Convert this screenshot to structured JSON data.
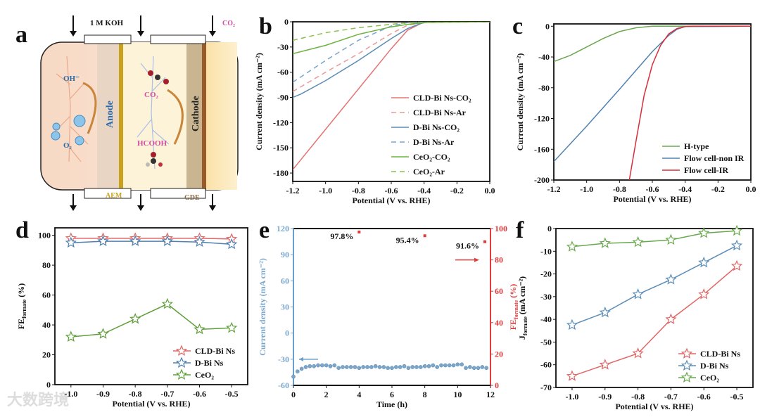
{
  "panel_labels": [
    "a",
    "b",
    "c",
    "d",
    "e",
    "f"
  ],
  "diagram": {
    "electrolyte": "1 M KOH",
    "co2_inlet": "CO₂",
    "oh": "OH⁻",
    "o2": "O₂",
    "anode": "Anode",
    "cathode": "Cathode",
    "co2": "CO₂",
    "hcooh": "HCOOH",
    "aem": "AEM",
    "gde": "GDE"
  },
  "watermark": "大数跨境",
  "chart_data": [
    {
      "id": "b",
      "type": "line",
      "xlabel": "Potential (V vs. RHE)",
      "ylabel": "Current density (mA cm⁻²)",
      "xlim": [
        -1.2,
        0
      ],
      "ylim": [
        -190,
        0
      ],
      "xticks": [
        "-1.2",
        "-1.0",
        "-0.8",
        "-0.6",
        "-0.4",
        "-0.2",
        "0.0"
      ],
      "yticks": [
        "0",
        "-30",
        "-60",
        "-90",
        "-120",
        "-150",
        "-180"
      ],
      "legend": "bottom-right",
      "series": [
        {
          "name": "CLD-Bi Ns-CO₂",
          "color": "#e57373",
          "dash": false,
          "points": [
            [
              -1.2,
              -176
            ],
            [
              -1.0,
              -128
            ],
            [
              -0.8,
              -80
            ],
            [
              -0.6,
              -32
            ],
            [
              -0.5,
              -10
            ],
            [
              -0.42,
              -2
            ],
            [
              -0.38,
              0
            ],
            [
              0,
              0
            ]
          ]
        },
        {
          "name": "CLD-Bi Ns-Ar",
          "color": "#e99a9a",
          "dash": true,
          "points": [
            [
              -1.2,
              -83
            ],
            [
              -1.0,
              -60
            ],
            [
              -0.8,
              -38
            ],
            [
              -0.6,
              -14
            ],
            [
              -0.5,
              -4
            ],
            [
              -0.4,
              -1
            ],
            [
              0,
              0
            ]
          ]
        },
        {
          "name": "D-Bi Ns-CO₂",
          "color": "#5b8db8",
          "dash": false,
          "points": [
            [
              -1.2,
              -90
            ],
            [
              -1.15,
              -86
            ],
            [
              -1.0,
              -70
            ],
            [
              -0.8,
              -46
            ],
            [
              -0.6,
              -20
            ],
            [
              -0.5,
              -8
            ],
            [
              -0.42,
              -2
            ],
            [
              -0.38,
              0
            ],
            [
              0,
              0
            ]
          ]
        },
        {
          "name": "D-Bi Ns-Ar",
          "color": "#7aa6cc",
          "dash": true,
          "points": [
            [
              -1.2,
              -72
            ],
            [
              -1.0,
              -46
            ],
            [
              -0.8,
              -22
            ],
            [
              -0.6,
              -5
            ],
            [
              -0.5,
              -1
            ],
            [
              0,
              0
            ]
          ]
        },
        {
          "name": "CeO₂-CO₂",
          "color": "#6cb33f",
          "dash": false,
          "points": [
            [
              -1.2,
              -38
            ],
            [
              -1.0,
              -28
            ],
            [
              -0.8,
              -15
            ],
            [
              -0.6,
              -6
            ],
            [
              -0.5,
              -3
            ],
            [
              -0.4,
              -1
            ],
            [
              0,
              0
            ]
          ]
        },
        {
          "name": "CeO₂-Ar",
          "color": "#8cbf4f",
          "dash": true,
          "points": [
            [
              -1.2,
              -22
            ],
            [
              -1.0,
              -13
            ],
            [
              -0.8,
              -7
            ],
            [
              -0.6,
              -3
            ],
            [
              -0.5,
              -1
            ],
            [
              0,
              0
            ]
          ]
        }
      ]
    },
    {
      "id": "c",
      "type": "line",
      "xlabel": "Potential (V vs. RHE)",
      "ylabel": "Current density (mA cm⁻²)",
      "xlim": [
        -1.2,
        0
      ],
      "ylim": [
        -200,
        3
      ],
      "xticks": [
        "-1.2",
        "-1.0",
        "-0.8",
        "-0.6",
        "-0.4",
        "-0.2",
        "0.0"
      ],
      "yticks": [
        "0",
        "-40",
        "-80",
        "-120",
        "-160",
        "-200"
      ],
      "legend": "bottom-right",
      "series": [
        {
          "name": "H-type",
          "color": "#6aa84f",
          "dash": false,
          "points": [
            [
              -1.2,
              -46
            ],
            [
              -1.1,
              -38
            ],
            [
              -1.0,
              -27
            ],
            [
              -0.9,
              -16
            ],
            [
              -0.8,
              -7
            ],
            [
              -0.7,
              -2
            ],
            [
              -0.6,
              0
            ],
            [
              0,
              0
            ]
          ]
        },
        {
          "name": "Flow cell-non IR",
          "color": "#4f81b0",
          "dash": false,
          "points": [
            [
              -1.2,
              -176
            ],
            [
              -1.0,
              -130
            ],
            [
              -0.8,
              -82
            ],
            [
              -0.6,
              -33
            ],
            [
              -0.5,
              -12
            ],
            [
              -0.45,
              -4
            ],
            [
              -0.4,
              -0.5
            ],
            [
              0,
              0
            ]
          ]
        },
        {
          "name": "Flow cell-IR",
          "color": "#d62f3a",
          "dash": false,
          "points": [
            [
              -0.74,
              -200
            ],
            [
              -0.7,
              -150
            ],
            [
              -0.65,
              -90
            ],
            [
              -0.6,
              -50
            ],
            [
              -0.55,
              -25
            ],
            [
              -0.5,
              -10
            ],
            [
              -0.45,
              -3
            ],
            [
              -0.4,
              -0.5
            ],
            [
              -0.35,
              0
            ],
            [
              0,
              0
            ]
          ]
        }
      ]
    },
    {
      "id": "d",
      "type": "line",
      "xlabel": "Potential (V vs. RHE)",
      "ylabel": {
        "main": "FE",
        "sub": "formate",
        "rest": " (%)"
      },
      "xlim": [
        -1.05,
        -0.45
      ],
      "ylim": [
        0,
        105
      ],
      "xticks": [
        "-1.0",
        "-0.9",
        "-0.8",
        "-0.7",
        "-0.6",
        "-0.5"
      ],
      "yticks": [
        "0",
        "20",
        "40",
        "60",
        "80",
        "100"
      ],
      "legend": "bottom-right",
      "x": [
        -1.0,
        -0.9,
        -0.8,
        -0.7,
        -0.6,
        -0.5
      ],
      "series": [
        {
          "name": "CLD-Bi Ns",
          "color": "#e06666",
          "values": [
            98,
            98,
            98,
            98,
            98,
            97.5
          ]
        },
        {
          "name": "D-Bi Ns",
          "color": "#4f81b0",
          "values": [
            95,
            96,
            96,
            96,
            95.5,
            94
          ]
        },
        {
          "name": "CeO₂",
          "color": "#5f9e3a",
          "values": [
            32,
            34,
            44,
            54,
            37,
            38
          ]
        }
      ]
    },
    {
      "id": "e",
      "type": "scatter",
      "xlabel": "Time (h)",
      "ylabel": "Current density (mA cm⁻²)",
      "ylabel2": {
        "main": "FE",
        "sub": "formate",
        "rest": " (%)"
      },
      "xlim": [
        0,
        12
      ],
      "ylim": [
        -60,
        120
      ],
      "y2lim": [
        0,
        100
      ],
      "xticks": [
        "0",
        "2",
        "4",
        "6",
        "8",
        "10",
        "12"
      ],
      "yticks": [
        "120",
        "90",
        "60",
        "30",
        "0",
        "-30",
        "-60"
      ],
      "y2ticks": [
        "100",
        "80",
        "60",
        "40",
        "20",
        "0"
      ],
      "current": {
        "color": "#7aa6cc",
        "x_start": 0,
        "x_step": 0.25,
        "values": [
          -50,
          -44,
          -41,
          -39,
          -38,
          -38,
          -37,
          -37,
          -37,
          -38,
          -37,
          -40,
          -39,
          -39,
          -39,
          -39,
          -40,
          -39,
          -39,
          -39,
          -38,
          -39,
          -39,
          -40,
          -40,
          -39,
          -39,
          -38,
          -40,
          -39,
          -39,
          -39,
          -38,
          -38,
          -37,
          -39,
          -37,
          -37,
          -37,
          -37,
          -36,
          -36,
          -40,
          -39,
          -40,
          -40,
          -39,
          -40
        ]
      },
      "fe": {
        "color": "#e03c3c",
        "x": [
          4,
          8,
          12
        ],
        "values": [
          97.8,
          95.4,
          91.6
        ],
        "labels": [
          "97.8%",
          "95.4%",
          "91.6%"
        ]
      }
    },
    {
      "id": "f",
      "type": "line",
      "xlabel": "Potential (V vs. RHE)",
      "ylabel": {
        "main": "J",
        "sub": "formate",
        "rest": " (mA cm⁻²)"
      },
      "xlim": [
        -1.049,
        -0.451
      ],
      "ylim": [
        -70,
        0
      ],
      "xticks": [
        "-1.0",
        "-0.9",
        "-0.8",
        "-0.7",
        "-0.6",
        "-0.5"
      ],
      "yticks": [
        "0",
        "-10",
        "-20",
        "-30",
        "-40",
        "-50",
        "-60",
        "-70"
      ],
      "legend": "bottom-right",
      "x": [
        -1.0,
        -0.9,
        -0.8,
        -0.7,
        -0.6,
        -0.5
      ],
      "series": [
        {
          "name": "CLD-Bi Ns",
          "color": "#e06666",
          "values": [
            -65,
            -60,
            -55,
            -40,
            -29,
            -16.5
          ]
        },
        {
          "name": "D-Bi Ns",
          "color": "#5b8db8",
          "values": [
            -42.5,
            -37,
            -29,
            -22.5,
            -15,
            -7.5
          ]
        },
        {
          "name": "CeO₂",
          "color": "#6aa84f",
          "values": [
            -8,
            -6.5,
            -6,
            -5,
            -2,
            -1
          ]
        }
      ]
    }
  ]
}
